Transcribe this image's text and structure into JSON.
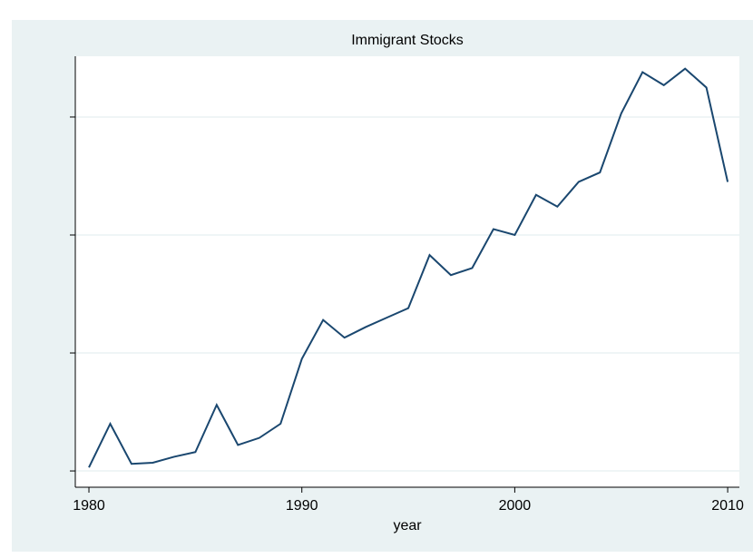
{
  "chart_data": {
    "type": "line",
    "title": "Immigrant Stocks",
    "x_label": "year",
    "x": [
      1980,
      1981,
      1982,
      1983,
      1984,
      1985,
      1986,
      1987,
      1988,
      1989,
      1990,
      1991,
      1992,
      1993,
      1994,
      1995,
      1996,
      1997,
      1998,
      1999,
      2000,
      2001,
      2002,
      2003,
      2004,
      2005,
      2006,
      2007,
      2008,
      2009,
      2010
    ],
    "series": [
      {
        "color": "#1a476f",
        "values": [
          0.03,
          0.4,
          0.06,
          0.07,
          0.12,
          0.16,
          0.56,
          0.22,
          0.28,
          0.4,
          0.95,
          1.28,
          1.13,
          1.22,
          1.3,
          1.38,
          1.83,
          1.66,
          1.72,
          2.05,
          2.0,
          2.34,
          2.24,
          2.45,
          2.53,
          3.03,
          3.38,
          3.27,
          3.41,
          3.25,
          2.45
        ]
      }
    ],
    "xlim": [
      1979.36,
      2010.55
    ],
    "xticks": [
      1980,
      1990,
      2000,
      2010
    ],
    "ylim": [
      -0.138,
      3.515
    ],
    "yticks": [
      0,
      1,
      2,
      3
    ],
    "grid": true
  }
}
